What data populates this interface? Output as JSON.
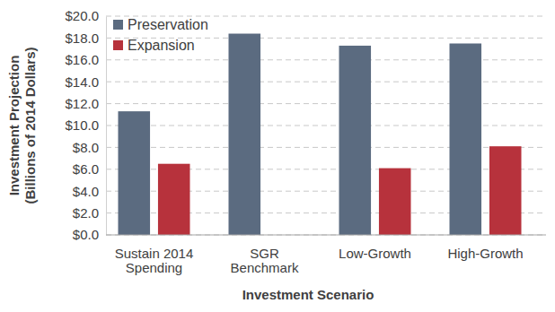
{
  "chart_data": {
    "type": "bar",
    "x_label": "Investment Scenario",
    "y_label": "Investment Projection\n(Billions of 2014 Dollars)",
    "categories": [
      "Sustain 2014\nSpending",
      "SGR\nBenchmark",
      "Low-Growth",
      "High-Growth"
    ],
    "series": [
      {
        "name": "Preservation",
        "color": "#5b6b80",
        "values": [
          11.3,
          18.4,
          17.3,
          17.5
        ]
      },
      {
        "name": "Expansion",
        "color": "#b7323c",
        "values": [
          6.5,
          null,
          6.1,
          8.1
        ]
      }
    ],
    "ylim": [
      0,
      20
    ],
    "yticks": [
      {
        "value": 0,
        "label": "$0.0"
      },
      {
        "value": 2,
        "label": "$2.0"
      },
      {
        "value": 4,
        "label": "$4.0"
      },
      {
        "value": 6,
        "label": "$6.0"
      },
      {
        "value": 8,
        "label": "$8.0"
      },
      {
        "value": 10,
        "label": "$10.0"
      },
      {
        "value": 12,
        "label": "$12.0"
      },
      {
        "value": 14,
        "label": "$14.0"
      },
      {
        "value": 16,
        "label": "$16.0"
      },
      {
        "value": 18,
        "label": "$18.0"
      },
      {
        "value": 20,
        "label": "$20.0"
      }
    ],
    "grid": true,
    "legend": "top-left"
  }
}
